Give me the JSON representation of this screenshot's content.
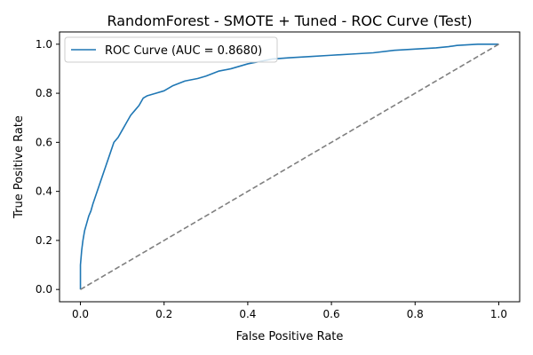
{
  "chart_data": {
    "type": "line",
    "title": "RandomForest - SMOTE + Tuned - ROC Curve (Test)",
    "xlabel": "False Positive Rate",
    "ylabel": "True Positive Rate",
    "xlim": [
      -0.05,
      1.05
    ],
    "ylim": [
      -0.05,
      1.05
    ],
    "xticks": [
      0.0,
      0.2,
      0.4,
      0.6,
      0.8,
      1.0
    ],
    "yticks": [
      0.0,
      0.2,
      0.4,
      0.6,
      0.8,
      1.0
    ],
    "xtick_labels": [
      "0.0",
      "0.2",
      "0.4",
      "0.6",
      "0.8",
      "1.0"
    ],
    "ytick_labels": [
      "0.0",
      "0.2",
      "0.4",
      "0.6",
      "0.8",
      "1.0"
    ],
    "grid": false,
    "legend_position": "upper-left",
    "series": [
      {
        "name": "ROC Curve (AUC = 0.8680)",
        "color": "#1f77b4",
        "style": "solid",
        "x": [
          0.0,
          0.0,
          0.003,
          0.006,
          0.01,
          0.015,
          0.02,
          0.025,
          0.03,
          0.04,
          0.05,
          0.06,
          0.07,
          0.08,
          0.09,
          0.1,
          0.11,
          0.12,
          0.13,
          0.14,
          0.15,
          0.16,
          0.18,
          0.2,
          0.22,
          0.25,
          0.28,
          0.3,
          0.33,
          0.36,
          0.4,
          0.43,
          0.46,
          0.5,
          0.55,
          0.6,
          0.65,
          0.7,
          0.75,
          0.8,
          0.85,
          0.88,
          0.9,
          0.95,
          1.0
        ],
        "y": [
          0.0,
          0.1,
          0.16,
          0.2,
          0.24,
          0.27,
          0.3,
          0.32,
          0.35,
          0.4,
          0.45,
          0.5,
          0.55,
          0.6,
          0.62,
          0.65,
          0.68,
          0.71,
          0.73,
          0.75,
          0.78,
          0.79,
          0.8,
          0.81,
          0.83,
          0.85,
          0.86,
          0.87,
          0.89,
          0.9,
          0.92,
          0.93,
          0.94,
          0.945,
          0.95,
          0.955,
          0.96,
          0.965,
          0.975,
          0.98,
          0.985,
          0.99,
          0.995,
          1.0,
          1.0
        ]
      },
      {
        "name": "",
        "color": "#7f7f7f",
        "style": "dashed",
        "x": [
          0.0,
          1.0
        ],
        "y": [
          0.0,
          1.0
        ]
      }
    ]
  }
}
